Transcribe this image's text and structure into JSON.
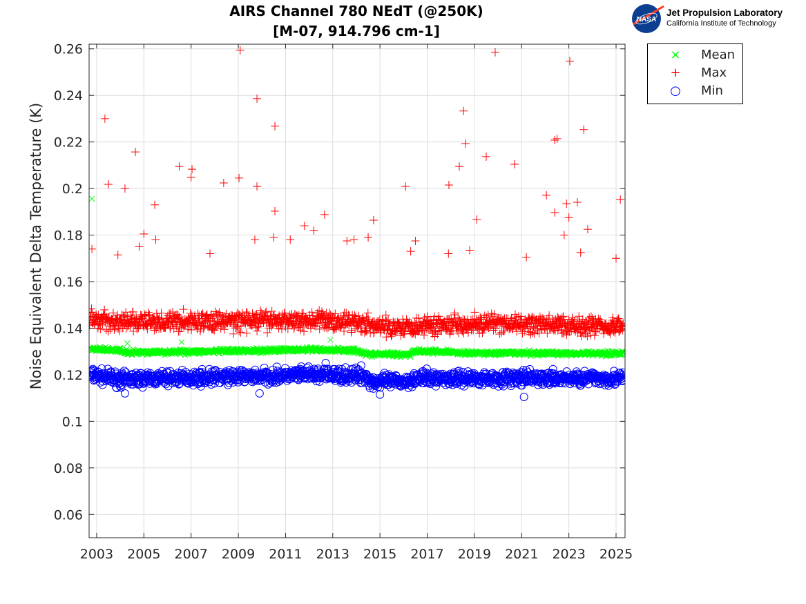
{
  "chart_data": {
    "type": "scatter",
    "title": [
      "AIRS Channel 780 NEdT (@250K)",
      "[M-07, 914.796 cm-1]"
    ],
    "xlabel": "",
    "ylabel": "Noise Equivalent Delta Temperature (K)",
    "xlim": [
      2002.68,
      2025.38
    ],
    "ylim": [
      0.05,
      0.262
    ],
    "xticks": [
      "2003",
      "2005",
      "2007",
      "2009",
      "2011",
      "2013",
      "2015",
      "2017",
      "2019",
      "2021",
      "2023",
      "2025"
    ],
    "yticks": [
      "0.06",
      "0.08",
      "0.1",
      "0.12",
      "0.14",
      "0.16",
      "0.18",
      "0.2",
      "0.22",
      "0.24",
      "0.26"
    ],
    "grid": true,
    "legend_position": "outside-top-right",
    "series": [
      {
        "name": "Mean",
        "marker": "x",
        "color": "#00ff00",
        "trend": [
          [
            2002.7,
            0.131
          ],
          [
            2004,
            0.1305
          ],
          [
            2004.2,
            0.1295
          ],
          [
            2006,
            0.1298
          ],
          [
            2008,
            0.13
          ],
          [
            2010,
            0.1305
          ],
          [
            2012,
            0.1308
          ],
          [
            2014,
            0.1305
          ],
          [
            2014.5,
            0.1288
          ],
          [
            2016.3,
            0.1288
          ],
          [
            2016.4,
            0.1302
          ],
          [
            2018,
            0.1298
          ],
          [
            2018.5,
            0.1293
          ],
          [
            2025.3,
            0.1292
          ]
        ],
        "spread": 0.0015,
        "outliers": [
          [
            2002.8,
            0.1956
          ],
          [
            2004.3,
            0.1335
          ],
          [
            2006.6,
            0.134
          ],
          [
            2012.9,
            0.135
          ]
        ]
      },
      {
        "name": "Max",
        "marker": "+",
        "color": "#ff0000",
        "trend": [
          [
            2002.7,
            0.144
          ],
          [
            2004,
            0.1425
          ],
          [
            2008,
            0.143
          ],
          [
            2012,
            0.1435
          ],
          [
            2014.4,
            0.1425
          ],
          [
            2014.6,
            0.1405
          ],
          [
            2016.5,
            0.141
          ],
          [
            2018,
            0.142
          ],
          [
            2025.3,
            0.141
          ]
        ],
        "spread": 0.006,
        "outliers": [
          [
            2002.8,
            0.174
          ],
          [
            2003.35,
            0.23
          ],
          [
            2003.5,
            0.2018
          ],
          [
            2004.2,
            0.2
          ],
          [
            2004.64,
            0.2157
          ],
          [
            2005.46,
            0.193
          ],
          [
            2006.5,
            0.2095
          ],
          [
            2007.04,
            0.2083
          ],
          [
            2007.0,
            0.2048
          ],
          [
            2008.38,
            0.2024
          ],
          [
            2009.03,
            0.2045
          ],
          [
            2009.08,
            0.2594
          ],
          [
            2009.79,
            0.2386
          ],
          [
            2009.79,
            0.2009
          ],
          [
            2010.55,
            0.2268
          ],
          [
            2010.55,
            0.1903
          ],
          [
            2012.65,
            0.1888
          ],
          [
            2014.73,
            0.1864
          ],
          [
            2016.08,
            0.2009
          ],
          [
            2017.92,
            0.2015
          ],
          [
            2018.36,
            0.2095
          ],
          [
            2018.54,
            0.2333
          ],
          [
            2018.62,
            0.2193
          ],
          [
            2019.1,
            0.1867
          ],
          [
            2019.5,
            0.2137
          ],
          [
            2019.88,
            0.2585
          ],
          [
            2020.7,
            0.2104
          ],
          [
            2022.05,
            0.1971
          ],
          [
            2022.4,
            0.2208
          ],
          [
            2022.5,
            0.2214
          ],
          [
            2022.4,
            0.1897
          ],
          [
            2022.9,
            0.1935
          ],
          [
            2023.04,
            0.2547
          ],
          [
            2023.36,
            0.1941
          ],
          [
            2023.63,
            0.2253
          ],
          [
            2025.18,
            0.1953
          ],
          [
            2005.0,
            0.1805
          ],
          [
            2005.5,
            0.178
          ],
          [
            2007.8,
            0.172
          ],
          [
            2009.7,
            0.178
          ],
          [
            2010.5,
            0.179
          ],
          [
            2011.2,
            0.178
          ],
          [
            2011.8,
            0.184
          ],
          [
            2012.2,
            0.182
          ],
          [
            2013.6,
            0.1775
          ],
          [
            2013.9,
            0.178
          ],
          [
            2014.5,
            0.179
          ],
          [
            2016.5,
            0.1775
          ],
          [
            2016.3,
            0.173
          ],
          [
            2017.9,
            0.172
          ],
          [
            2018.8,
            0.1735
          ],
          [
            2021.2,
            0.1705
          ],
          [
            2022.8,
            0.18
          ],
          [
            2023.0,
            0.1875
          ],
          [
            2023.5,
            0.1725
          ],
          [
            2023.8,
            0.1825
          ],
          [
            2025.0,
            0.17
          ],
          [
            2003.9,
            0.1715
          ],
          [
            2004.8,
            0.175
          ]
        ]
      },
      {
        "name": "Min",
        "marker": "o",
        "color": "#0000ff",
        "trend": [
          [
            2002.7,
            0.12
          ],
          [
            2004,
            0.118
          ],
          [
            2008,
            0.119
          ],
          [
            2010.5,
            0.1195
          ],
          [
            2012,
            0.12
          ],
          [
            2014.4,
            0.1195
          ],
          [
            2014.6,
            0.117
          ],
          [
            2016,
            0.117
          ],
          [
            2016.5,
            0.1185
          ],
          [
            2025.3,
            0.1185
          ]
        ],
        "spread": 0.0045,
        "outliers": [
          [
            2004.2,
            0.112
          ],
          [
            2009.9,
            0.112
          ],
          [
            2015.0,
            0.1115
          ],
          [
            2021.1,
            0.1105
          ],
          [
            2012.7,
            0.125
          ],
          [
            2014.2,
            0.124
          ]
        ]
      }
    ]
  },
  "logo": {
    "agency": "NASA",
    "line1": "Jet Propulsion Laboratory",
    "line2": "California Institute of Technology"
  }
}
